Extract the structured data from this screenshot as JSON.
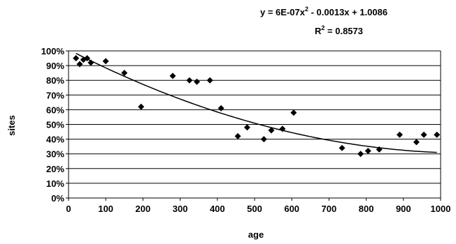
{
  "chart_data": {
    "type": "scatter",
    "xlabel": "age",
    "ylabel": "sites",
    "xlim": [
      0,
      1000
    ],
    "ylim": [
      0,
      1
    ],
    "x_ticks": [
      "0",
      "100",
      "200",
      "300",
      "400",
      "500",
      "600",
      "700",
      "800",
      "900",
      "1000"
    ],
    "y_ticks": [
      "0%",
      "10%",
      "20%",
      "30%",
      "40%",
      "50%",
      "60%",
      "70%",
      "80%",
      "90%",
      "100%"
    ],
    "grid": "horizontal",
    "marker": "diamond",
    "points": [
      {
        "x": 20,
        "y": 0.95
      },
      {
        "x": 30,
        "y": 0.91
      },
      {
        "x": 40,
        "y": 0.94
      },
      {
        "x": 50,
        "y": 0.95
      },
      {
        "x": 60,
        "y": 0.92
      },
      {
        "x": 100,
        "y": 0.93
      },
      {
        "x": 150,
        "y": 0.85
      },
      {
        "x": 195,
        "y": 0.62
      },
      {
        "x": 280,
        "y": 0.83
      },
      {
        "x": 325,
        "y": 0.8
      },
      {
        "x": 345,
        "y": 0.79
      },
      {
        "x": 380,
        "y": 0.8
      },
      {
        "x": 410,
        "y": 0.61
      },
      {
        "x": 455,
        "y": 0.42
      },
      {
        "x": 480,
        "y": 0.48
      },
      {
        "x": 525,
        "y": 0.4
      },
      {
        "x": 545,
        "y": 0.46
      },
      {
        "x": 575,
        "y": 0.47
      },
      {
        "x": 605,
        "y": 0.58
      },
      {
        "x": 735,
        "y": 0.34
      },
      {
        "x": 785,
        "y": 0.3
      },
      {
        "x": 805,
        "y": 0.32
      },
      {
        "x": 835,
        "y": 0.33
      },
      {
        "x": 890,
        "y": 0.43
      },
      {
        "x": 935,
        "y": 0.38
      },
      {
        "x": 955,
        "y": 0.43
      },
      {
        "x": 990,
        "y": 0.43
      }
    ],
    "trendline": {
      "type": "polynomial",
      "a2": 6e-07,
      "a1": -0.0013,
      "a0": 1.0086,
      "equation_parts": [
        "y = 6E-07x",
        "2",
        " - 0.0013x + 1.0086"
      ],
      "r2_parts": [
        "R",
        "2",
        " = 0.8573"
      ]
    }
  }
}
